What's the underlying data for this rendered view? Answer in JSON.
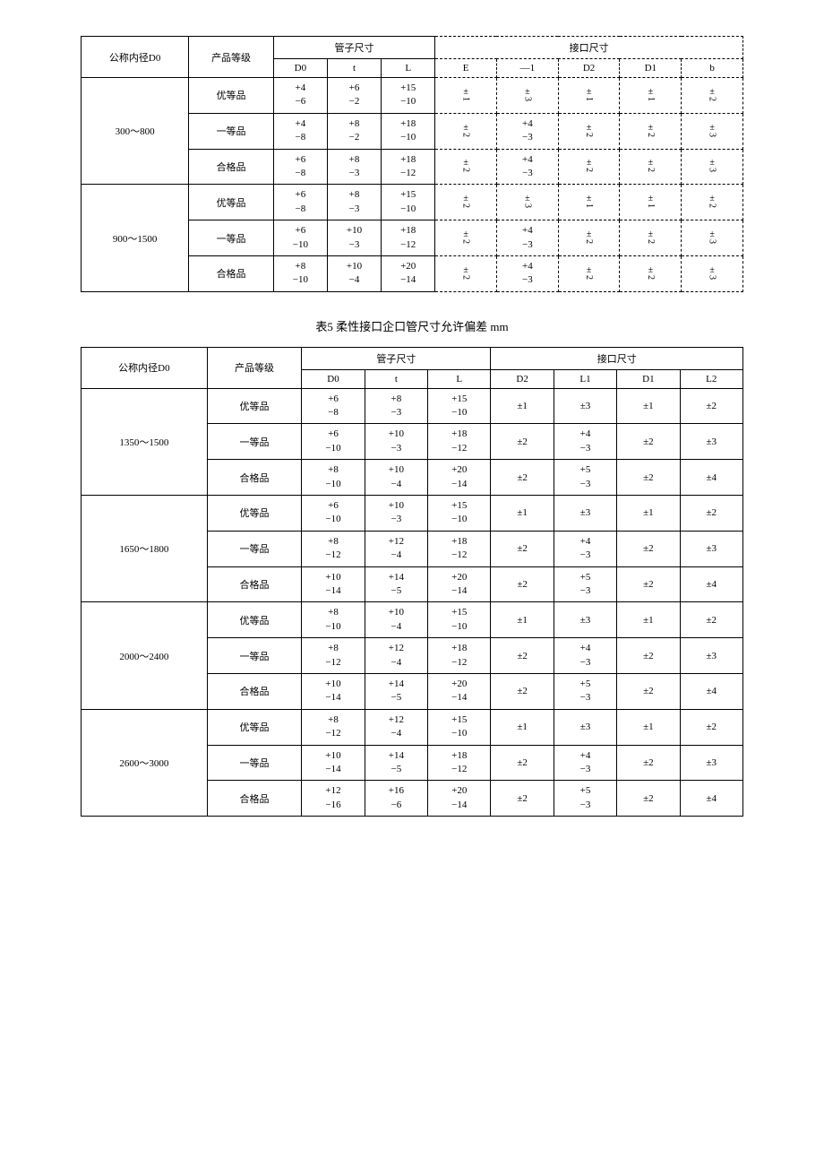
{
  "table1": {
    "headers": {
      "col_dn": "公称内径D0",
      "col_grade": "产品等级",
      "group_pipe": "管子尺寸",
      "group_joint": "接口尺寸",
      "sub": [
        "D0",
        "t",
        "L",
        "E",
        "—1",
        "D2",
        "D1",
        "b"
      ]
    },
    "groups": [
      {
        "dn": "300～800",
        "rows": [
          {
            "grade": "优等品",
            "d0": [
              "+4",
              "−6"
            ],
            "t": [
              "+6",
              "−2"
            ],
            "L": [
              "+15",
              "−10"
            ],
            "c1": "±1",
            "c2": "±3",
            "c3": "±1",
            "c4": "±1",
            "c5": "±2"
          },
          {
            "grade": "一等品",
            "d0": [
              "+4",
              "−8"
            ],
            "t": [
              "+8",
              "−2"
            ],
            "L": [
              "+18",
              "−10"
            ],
            "c1": "±2",
            "c2": [
              "+4",
              "−3"
            ],
            "c3": "±2",
            "c4": "±2",
            "c5": "±3"
          },
          {
            "grade": "合格品",
            "d0": [
              "+6",
              "−8"
            ],
            "t": [
              "+8",
              "−3"
            ],
            "L": [
              "+18",
              "−12"
            ],
            "c1": "±2",
            "c2": [
              "+4",
              "−3"
            ],
            "c3": "±2",
            "c4": "±2",
            "c5": "±3"
          }
        ]
      },
      {
        "dn": "900～1500",
        "rows": [
          {
            "grade": "优等品",
            "d0": [
              "+6",
              "−8"
            ],
            "t": [
              "+8",
              "−3"
            ],
            "L": [
              "+15",
              "−10"
            ],
            "c1": "±2",
            "c2": "±3",
            "c3": "±1",
            "c4": "±1",
            "c5": "±2"
          },
          {
            "grade": "一等品",
            "d0": [
              "+6",
              "−10"
            ],
            "t": [
              "+10",
              "−3"
            ],
            "L": [
              "+18",
              "−12"
            ],
            "c1": "±2",
            "c2": [
              "+4",
              "−3"
            ],
            "c3": "±2",
            "c4": "±2",
            "c5": "±3"
          },
          {
            "grade": "合格品",
            "d0": [
              "+8",
              "−10"
            ],
            "t": [
              "+10",
              "−4"
            ],
            "L": [
              "+20",
              "−14"
            ],
            "c1": "±2",
            "c2": [
              "+4",
              "−3"
            ],
            "c3": "±2",
            "c4": "±2",
            "c5": "±3"
          }
        ]
      }
    ]
  },
  "caption2": "表5  柔性接口企口管尺寸允许偏差    mm",
  "table2": {
    "headers": {
      "col_dn": "公称内径D0",
      "col_grade": "产品等级",
      "group_pipe": "管子尺寸",
      "group_joint": "接口尺寸",
      "sub": [
        "D0",
        "t",
        "L",
        "D2",
        "L1",
        "D1",
        "L2"
      ]
    },
    "groups": [
      {
        "dn": "1350～1500",
        "rows": [
          {
            "grade": "优等品",
            "d0": [
              "+6",
              "−8"
            ],
            "t": [
              "+8",
              "−3"
            ],
            "L": [
              "+15",
              "−10"
            ],
            "d2": "±1",
            "l1": "±3",
            "d1": "±1",
            "l2": "±2"
          },
          {
            "grade": "一等品",
            "d0": [
              "+6",
              "−10"
            ],
            "t": [
              "+10",
              "−3"
            ],
            "L": [
              "+18",
              "−12"
            ],
            "d2": "±2",
            "l1": [
              "+4",
              "−3"
            ],
            "d1": "±2",
            "l2": "±3"
          },
          {
            "grade": "合格品",
            "d0": [
              "+8",
              "−10"
            ],
            "t": [
              "+10",
              "−4"
            ],
            "L": [
              "+20",
              "−14"
            ],
            "d2": "±2",
            "l1": [
              "+5",
              "−3"
            ],
            "d1": "±2",
            "l2": "±4"
          }
        ]
      },
      {
        "dn": "1650～1800",
        "rows": [
          {
            "grade": "优等品",
            "d0": [
              "+6",
              "−10"
            ],
            "t": [
              "+10",
              "−3"
            ],
            "L": [
              "+15",
              "−10"
            ],
            "d2": "±1",
            "l1": "±3",
            "d1": "±1",
            "l2": "±2"
          },
          {
            "grade": "一等品",
            "d0": [
              "+8",
              "−12"
            ],
            "t": [
              "+12",
              "−4"
            ],
            "L": [
              "+18",
              "−12"
            ],
            "d2": "±2",
            "l1": [
              "+4",
              "−3"
            ],
            "d1": "±2",
            "l2": "±3"
          },
          {
            "grade": "合格品",
            "d0": [
              "+10",
              "−14"
            ],
            "t": [
              "+14",
              "−5"
            ],
            "L": [
              "+20",
              "−14"
            ],
            "d2": "±2",
            "l1": [
              "+5",
              "−3"
            ],
            "d1": "±2",
            "l2": "±4"
          }
        ]
      },
      {
        "dn": "2000～2400",
        "rows": [
          {
            "grade": "优等品",
            "d0": [
              "+8",
              "−10"
            ],
            "t": [
              "+10",
              "−4"
            ],
            "L": [
              "+15",
              "−10"
            ],
            "d2": "±1",
            "l1": "±3",
            "d1": "±1",
            "l2": "±2"
          },
          {
            "grade": "一等品",
            "d0": [
              "+8",
              "−12"
            ],
            "t": [
              "+12",
              "−4"
            ],
            "L": [
              "+18",
              "−12"
            ],
            "d2": "±2",
            "l1": [
              "+4",
              "−3"
            ],
            "d1": "±2",
            "l2": "±3"
          },
          {
            "grade": "合格品",
            "d0": [
              "+10",
              "−14"
            ],
            "t": [
              "+14",
              "−5"
            ],
            "L": [
              "+20",
              "−14"
            ],
            "d2": "±2",
            "l1": [
              "+5",
              "−3"
            ],
            "d1": "±2",
            "l2": "±4"
          }
        ]
      },
      {
        "dn": "2600～3000",
        "rows": [
          {
            "grade": "优等品",
            "d0": [
              "+8",
              "−12"
            ],
            "t": [
              "+12",
              "−4"
            ],
            "L": [
              "+15",
              "−10"
            ],
            "d2": "±1",
            "l1": "±3",
            "d1": "±1",
            "l2": "±2"
          },
          {
            "grade": "一等品",
            "d0": [
              "+10",
              "−14"
            ],
            "t": [
              "+14",
              "−5"
            ],
            "L": [
              "+18",
              "−12"
            ],
            "d2": "±2",
            "l1": [
              "+4",
              "−3"
            ],
            "d1": "±2",
            "l2": "±3"
          },
          {
            "grade": "合格品",
            "d0": [
              "+12",
              "−16"
            ],
            "t": [
              "+16",
              "−6"
            ],
            "L": [
              "+20",
              "−14"
            ],
            "d2": "±2",
            "l1": [
              "+5",
              "−3"
            ],
            "d1": "±2",
            "l2": "±4"
          }
        ]
      }
    ]
  },
  "style": {
    "text_color": "#000000",
    "bg_color": "#ffffff",
    "border_color": "#000000",
    "font_family": "SimSun",
    "cell_fontsize": 11,
    "caption_fontsize": 13
  }
}
